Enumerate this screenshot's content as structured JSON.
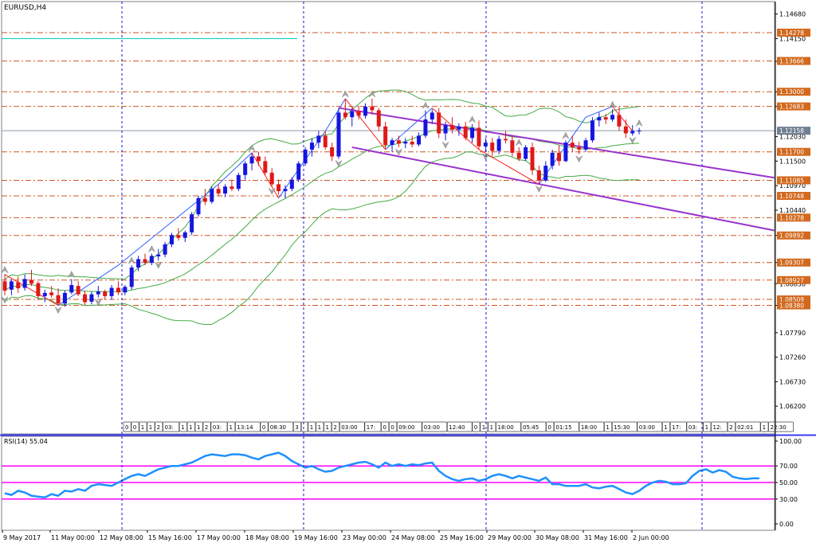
{
  "window": {
    "title": "EURUSD,H4"
  },
  "main_chart": {
    "chart_data": {
      "type": "candlestick",
      "symbol": "EURUSD",
      "timeframe": "H4",
      "ylim": [
        1.056,
        1.1495
      ],
      "y_ticks": [
        "1.14680",
        "1.14150",
        "1.13660",
        "1.13000",
        "1.12683",
        "1.12030",
        "1.11500",
        "1.10970",
        "1.10440",
        "1.09892",
        "1.09307",
        "1.08850",
        "1.08380",
        "1.07790",
        "1.07260",
        "1.06730",
        "1.06200"
      ],
      "x_tick_labels": [
        "9 May 2017",
        "11 May 00:00",
        "12 May 08:00",
        "15 May 16:00",
        "17 May 00:00",
        "18 May 08:00",
        "19 May 16:00",
        "23 May 00:00",
        "24 May 08:00",
        "25 May 16:00",
        "29 May 00:00",
        "30 May 08:00",
        "31 May 16:00",
        "2 Jun 00:00"
      ],
      "current_price": {
        "value": 1.12158,
        "label": "1.12158"
      },
      "candles": [
        [
          1.089,
          1.0905,
          1.086,
          1.087
        ],
        [
          1.0872,
          1.0895,
          1.086,
          1.089
        ],
        [
          1.0888,
          1.09,
          1.0865,
          1.0875
        ],
        [
          1.0876,
          1.0905,
          1.087,
          1.0895
        ],
        [
          1.0893,
          1.0915,
          1.088,
          1.0885
        ],
        [
          1.0886,
          1.089,
          1.085,
          1.0858
        ],
        [
          1.0858,
          1.0872,
          1.0845,
          1.0865
        ],
        [
          1.0866,
          1.088,
          1.0855,
          1.086
        ],
        [
          1.086,
          1.0875,
          1.0838,
          1.0842
        ],
        [
          1.0842,
          1.087,
          1.0835,
          1.0865
        ],
        [
          1.0866,
          1.0895,
          1.0862,
          1.0882
        ],
        [
          1.088,
          1.089,
          1.0858,
          1.0862
        ],
        [
          1.0862,
          1.087,
          1.0838,
          1.0845
        ],
        [
          1.0846,
          1.0868,
          1.084,
          1.0862
        ],
        [
          1.0862,
          1.088,
          1.0855,
          1.0868
        ],
        [
          1.0868,
          1.0872,
          1.085,
          1.0858
        ],
        [
          1.0858,
          1.0882,
          1.085,
          1.0876
        ],
        [
          1.0876,
          1.089,
          1.086,
          1.0866
        ],
        [
          1.0866,
          1.0882,
          1.086,
          1.0878
        ],
        [
          1.0878,
          1.0925,
          1.0872,
          1.092
        ],
        [
          1.092,
          1.0945,
          1.0912,
          1.0938
        ],
        [
          1.0938,
          1.095,
          1.0925,
          1.093
        ],
        [
          1.093,
          1.095,
          1.0925,
          1.0945
        ],
        [
          1.0944,
          1.096,
          1.0935,
          1.0948
        ],
        [
          1.0948,
          1.0975,
          1.0942,
          1.097
        ],
        [
          1.097,
          1.0995,
          1.0964,
          1.099
        ],
        [
          1.099,
          1.1005,
          1.0978,
          1.0984
        ],
        [
          1.0984,
          1.1,
          1.0975,
          1.0996
        ],
        [
          1.0996,
          1.104,
          1.099,
          1.1035
        ],
        [
          1.1035,
          1.1075,
          1.103,
          1.107
        ],
        [
          1.107,
          1.109,
          1.1055,
          1.1062
        ],
        [
          1.1062,
          1.1095,
          1.1058,
          1.109
        ],
        [
          1.109,
          1.11,
          1.1075,
          1.108
        ],
        [
          1.108,
          1.11,
          1.1072,
          1.1095
        ],
        [
          1.1095,
          1.111,
          1.1085,
          1.109
        ],
        [
          1.109,
          1.1125,
          1.1085,
          1.112
        ],
        [
          1.112,
          1.115,
          1.111,
          1.1145
        ],
        [
          1.1145,
          1.1168,
          1.113,
          1.116
        ],
        [
          1.116,
          1.117,
          1.114,
          1.115
        ],
        [
          1.115,
          1.116,
          1.112,
          1.1125
        ],
        [
          1.1125,
          1.1135,
          1.1095,
          1.11
        ],
        [
          1.11,
          1.111,
          1.1078,
          1.1085
        ],
        [
          1.1085,
          1.1098,
          1.107,
          1.109
        ],
        [
          1.109,
          1.1115,
          1.1085,
          1.111
        ],
        [
          1.111,
          1.115,
          1.1105,
          1.1145
        ],
        [
          1.1145,
          1.118,
          1.114,
          1.1175
        ],
        [
          1.1175,
          1.12,
          1.116,
          1.119
        ],
        [
          1.119,
          1.1215,
          1.1178,
          1.1205
        ],
        [
          1.1205,
          1.1215,
          1.1175,
          1.118
        ],
        [
          1.118,
          1.119,
          1.115,
          1.116
        ],
        [
          1.116,
          1.1265,
          1.1155,
          1.1255
        ],
        [
          1.1255,
          1.1285,
          1.124,
          1.1245
        ],
        [
          1.1245,
          1.1265,
          1.1225,
          1.1258
        ],
        [
          1.1258,
          1.127,
          1.124,
          1.1248
        ],
        [
          1.1248,
          1.1275,
          1.1242,
          1.1268
        ],
        [
          1.1268,
          1.1285,
          1.125,
          1.126
        ],
        [
          1.126,
          1.1265,
          1.1215,
          1.1225
        ],
        [
          1.1225,
          1.1235,
          1.1175,
          1.1185
        ],
        [
          1.1185,
          1.12,
          1.117,
          1.1195
        ],
        [
          1.1195,
          1.1205,
          1.118,
          1.1188
        ],
        [
          1.1188,
          1.12,
          1.1178,
          1.1192
        ],
        [
          1.1192,
          1.1205,
          1.118,
          1.1186
        ],
        [
          1.1186,
          1.1212,
          1.1182,
          1.1205
        ],
        [
          1.1205,
          1.126,
          1.12,
          1.124
        ],
        [
          1.124,
          1.1262,
          1.123,
          1.1255
        ],
        [
          1.1255,
          1.1265,
          1.12,
          1.121
        ],
        [
          1.121,
          1.1235,
          1.1195,
          1.1228
        ],
        [
          1.1228,
          1.1245,
          1.121,
          1.1218
        ],
        [
          1.1218,
          1.1232,
          1.1205,
          1.1225
        ],
        [
          1.1225,
          1.1235,
          1.1195,
          1.12
        ],
        [
          1.12,
          1.123,
          1.119,
          1.1222
        ],
        [
          1.1222,
          1.1238,
          1.1175,
          1.1182
        ],
        [
          1.1182,
          1.12,
          1.117,
          1.119
        ],
        [
          1.119,
          1.12,
          1.116,
          1.1172
        ],
        [
          1.1172,
          1.1205,
          1.1165,
          1.1198
        ],
        [
          1.1198,
          1.1215,
          1.1188,
          1.1195
        ],
        [
          1.1195,
          1.1205,
          1.116,
          1.1168
        ],
        [
          1.1168,
          1.118,
          1.115,
          1.1155
        ],
        [
          1.1155,
          1.1185,
          1.115,
          1.118
        ],
        [
          1.118,
          1.119,
          1.112,
          1.113
        ],
        [
          1.113,
          1.114,
          1.11,
          1.1108
        ],
        [
          1.1108,
          1.115,
          1.1105,
          1.114
        ],
        [
          1.114,
          1.1175,
          1.1132,
          1.1168
        ],
        [
          1.1168,
          1.1185,
          1.114,
          1.115
        ],
        [
          1.115,
          1.1195,
          1.1148,
          1.119
        ],
        [
          1.119,
          1.1205,
          1.117,
          1.118
        ],
        [
          1.118,
          1.1192,
          1.1165,
          1.1175
        ],
        [
          1.1175,
          1.12,
          1.117,
          1.1195
        ],
        [
          1.1195,
          1.1245,
          1.119,
          1.1238
        ],
        [
          1.1238,
          1.1255,
          1.1225,
          1.1245
        ],
        [
          1.1245,
          1.1252,
          1.123,
          1.124
        ],
        [
          1.124,
          1.1262,
          1.1235,
          1.125
        ],
        [
          1.125,
          1.1268,
          1.1215,
          1.1225
        ],
        [
          1.1225,
          1.124,
          1.12,
          1.121
        ],
        [
          1.121,
          1.1228,
          1.1205,
          1.1215
        ],
        [
          1.1215,
          1.1222,
          1.1208,
          1.1216
        ]
      ],
      "horizontal_levels": [
        {
          "value": 1.14278,
          "label": "1.14278"
        },
        {
          "value": 1.13666,
          "label": "1.13666"
        },
        {
          "value": 1.13,
          "label": "1.13000"
        },
        {
          "value": 1.12683,
          "label": "1.12683"
        },
        {
          "value": 1.117,
          "label": "1.11700"
        },
        {
          "value": 1.11085,
          "label": "1.11085"
        },
        {
          "value": 1.10748,
          "label": "1.10748"
        },
        {
          "value": 1.10278,
          "label": "1.10278"
        },
        {
          "value": 1.09892,
          "label": "1.09892"
        },
        {
          "value": 1.09307,
          "label": "1.09307"
        },
        {
          "value": 1.08927,
          "label": "1.08927"
        },
        {
          "value": 1.08509,
          "label": "1.08509"
        },
        {
          "value": 1.0838,
          "label": "1.08380"
        }
      ],
      "cyan_level": {
        "value": 1.1415
      },
      "trend_channel": {
        "upper": [
          [
            50,
            1.1265
          ],
          [
            114,
            1.1114
          ]
        ],
        "lower": [
          [
            52,
            1.118
          ],
          [
            114,
            1.1
          ]
        ]
      },
      "zigzag_points": [
        [
          0,
          1.0905
        ],
        [
          8,
          1.0838
        ],
        [
          17,
          1.0925
        ],
        [
          32,
          1.11
        ],
        [
          37,
          1.1168
        ],
        [
          41,
          1.107
        ],
        [
          48,
          1.1215
        ],
        [
          51,
          1.1285
        ],
        [
          57,
          1.1175
        ],
        [
          64,
          1.1265
        ],
        [
          71,
          1.1175
        ],
        [
          80,
          1.11
        ],
        [
          87,
          1.1245
        ],
        [
          91,
          1.1268
        ],
        [
          94,
          1.1215
        ]
      ],
      "cursor_marks": {
        "top": [
          0,
          10,
          19,
          22,
          37,
          51,
          55,
          63,
          70,
          77,
          84,
          91,
          95
        ],
        "bottom": [
          0,
          8,
          14,
          23,
          40,
          50,
          59,
          66,
          72,
          80,
          86,
          94
        ]
      },
      "time_tags": [
        "0",
        "0",
        "1",
        "1",
        "2",
        "03:",
        "1",
        "1",
        "1",
        "2",
        "03:",
        "1",
        "13:14",
        "0",
        "08:30",
        "3",
        "",
        "1",
        "1",
        "1",
        "2",
        "03:00",
        "17:",
        "0",
        "0",
        "09:00",
        "03:00",
        "12:40",
        "0",
        "1",
        "1",
        "18:00",
        "05:45",
        "0",
        "01:15",
        "18:00",
        "1",
        "15:30",
        "03:00",
        "1",
        "17:",
        "03:",
        "1",
        "12:",
        "2",
        "02:01",
        "1",
        "22:30"
      ]
    }
  },
  "rsi_panel": {
    "title": "RSI(14) 55.04",
    "chart_data": {
      "type": "line",
      "ylim": [
        0,
        100
      ],
      "y_ticks": [
        "100.00",
        "70.00",
        "50.00",
        "30.00",
        "0.00"
      ],
      "levels": [
        70,
        50,
        30
      ],
      "series": [
        {
          "values": [
            37,
            35,
            40,
            38,
            34,
            33,
            32,
            36,
            34,
            40,
            39,
            42,
            40,
            46,
            48,
            47,
            46,
            50,
            54,
            58,
            60,
            58,
            62,
            66,
            68,
            70,
            70,
            72,
            74,
            78,
            82,
            84,
            83,
            82,
            84,
            84,
            83,
            80,
            78,
            82,
            84,
            86,
            82,
            76,
            72,
            68,
            70,
            66,
            63,
            64,
            68,
            70,
            72,
            74,
            75,
            72,
            68,
            74,
            70,
            72,
            70,
            72,
            71,
            73,
            74,
            64,
            58,
            54,
            52,
            54,
            55,
            52,
            54,
            58,
            60,
            58,
            55,
            58,
            56,
            54,
            52,
            56,
            48,
            48,
            46,
            46,
            46,
            48,
            44,
            43,
            45,
            46,
            42,
            38,
            36,
            40,
            46,
            50,
            52,
            51,
            48,
            48,
            49,
            58,
            64,
            66,
            62,
            65,
            63,
            57,
            55,
            54,
            55,
            55
          ]
        }
      ]
    }
  },
  "colors": {
    "bull_candle": "#1515e0",
    "bear_candle": "#e01818",
    "bollinger": "#44aa44",
    "trend_channel": "#9933cc",
    "zigzag_red": "#ff2020",
    "zigzag_blue": "#3060ff",
    "level_line": "#cc5522",
    "level_label_bg": "#d2691e",
    "cyan_level": "#00cccc",
    "rsi_line": "#1e90ff",
    "rsi_level": "#ff00ff",
    "price_label_bg": "#708090",
    "separator": "#1515d0"
  }
}
